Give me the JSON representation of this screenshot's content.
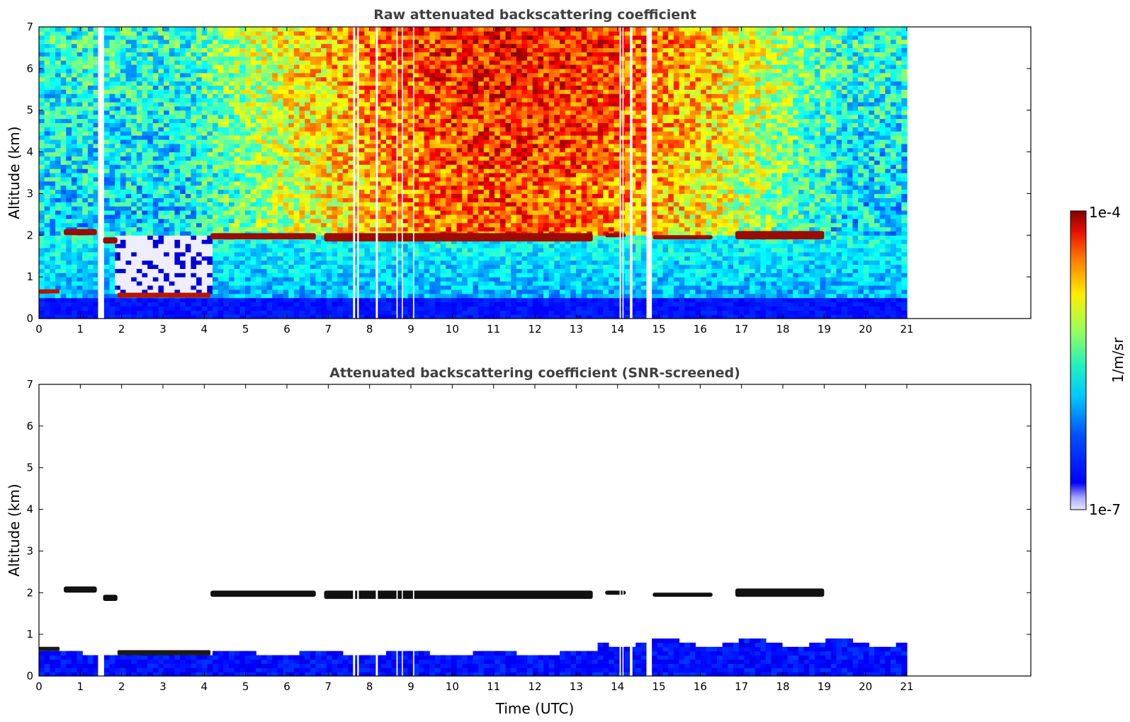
{
  "chart_data": [
    {
      "type": "heatmap",
      "title": "Raw attenuated backscattering coefficient",
      "xlabel": "",
      "ylabel": "Altitude (km)",
      "xlim": [
        0,
        24
      ],
      "ylim": [
        0,
        7
      ],
      "x_ticks": [
        "0",
        "1",
        "2",
        "3",
        "4",
        "5",
        "6",
        "7",
        "8",
        "9",
        "10",
        "11",
        "12",
        "13",
        "14",
        "15",
        "16",
        "17",
        "18",
        "19",
        "20",
        "21"
      ],
      "y_ticks": [
        "0",
        "1",
        "2",
        "3",
        "4",
        "5",
        "6",
        "7"
      ],
      "data_extent_hours": [
        0,
        21
      ],
      "data_gaps_hours": [
        [
          1.43,
          1.55
        ],
        [
          7.6,
          7.65
        ],
        [
          7.7,
          7.74
        ],
        [
          8.15,
          8.2
        ],
        [
          8.65,
          8.68
        ],
        [
          8.78,
          8.8
        ],
        [
          9.05,
          9.08
        ],
        [
          14.05,
          14.08
        ],
        [
          14.12,
          14.14
        ],
        [
          14.3,
          14.36
        ],
        [
          14.7,
          14.82
        ]
      ],
      "cloud_layer": [
        {
          "x": [
            0.6,
            1.4
          ],
          "base_km": 2.0,
          "top_km": 2.15
        },
        {
          "x": [
            1.55,
            1.9
          ],
          "base_km": 1.8,
          "top_km": 1.95
        },
        {
          "x": [
            4.15,
            6.7
          ],
          "base_km": 1.9,
          "top_km": 2.05
        },
        {
          "x": [
            6.9,
            13.4
          ],
          "base_km": 1.85,
          "top_km": 2.05
        },
        {
          "x": [
            13.7,
            14.2
          ],
          "base_km": 1.95,
          "top_km": 2.05
        },
        {
          "x": [
            14.85,
            16.3
          ],
          "base_km": 1.9,
          "top_km": 2.0
        },
        {
          "x": [
            16.85,
            19.0
          ],
          "base_km": 1.9,
          "top_km": 2.1
        }
      ],
      "low_layer": [
        {
          "x": [
            0,
            0.5
          ],
          "base_km": 0.6,
          "top_km": 0.7
        },
        {
          "x": [
            1.9,
            4.15
          ],
          "base_km": 0.5,
          "top_km": 0.62
        }
      ]
    },
    {
      "type": "heatmap",
      "title": "Attenuated backscattering coefficient (SNR-screened)",
      "xlabel": "Time (UTC)",
      "ylabel": "Altitude (km)",
      "xlim": [
        0,
        24
      ],
      "ylim": [
        0,
        7
      ],
      "x_ticks": [
        "0",
        "1",
        "2",
        "3",
        "4",
        "5",
        "6",
        "7",
        "8",
        "9",
        "10",
        "11",
        "12",
        "13",
        "14",
        "15",
        "16",
        "17",
        "18",
        "19",
        "20",
        "21"
      ],
      "y_ticks": [
        "0",
        "1",
        "2",
        "3",
        "4",
        "5",
        "6",
        "7"
      ],
      "data_extent_hours": [
        0,
        21
      ]
    }
  ],
  "colorbar": {
    "label": "1/m/sr",
    "max_label": "1e-4",
    "min_label": "1e-7",
    "min_value": 1e-07,
    "max_value": 0.0001,
    "scale": "log",
    "colormap": "jet"
  }
}
